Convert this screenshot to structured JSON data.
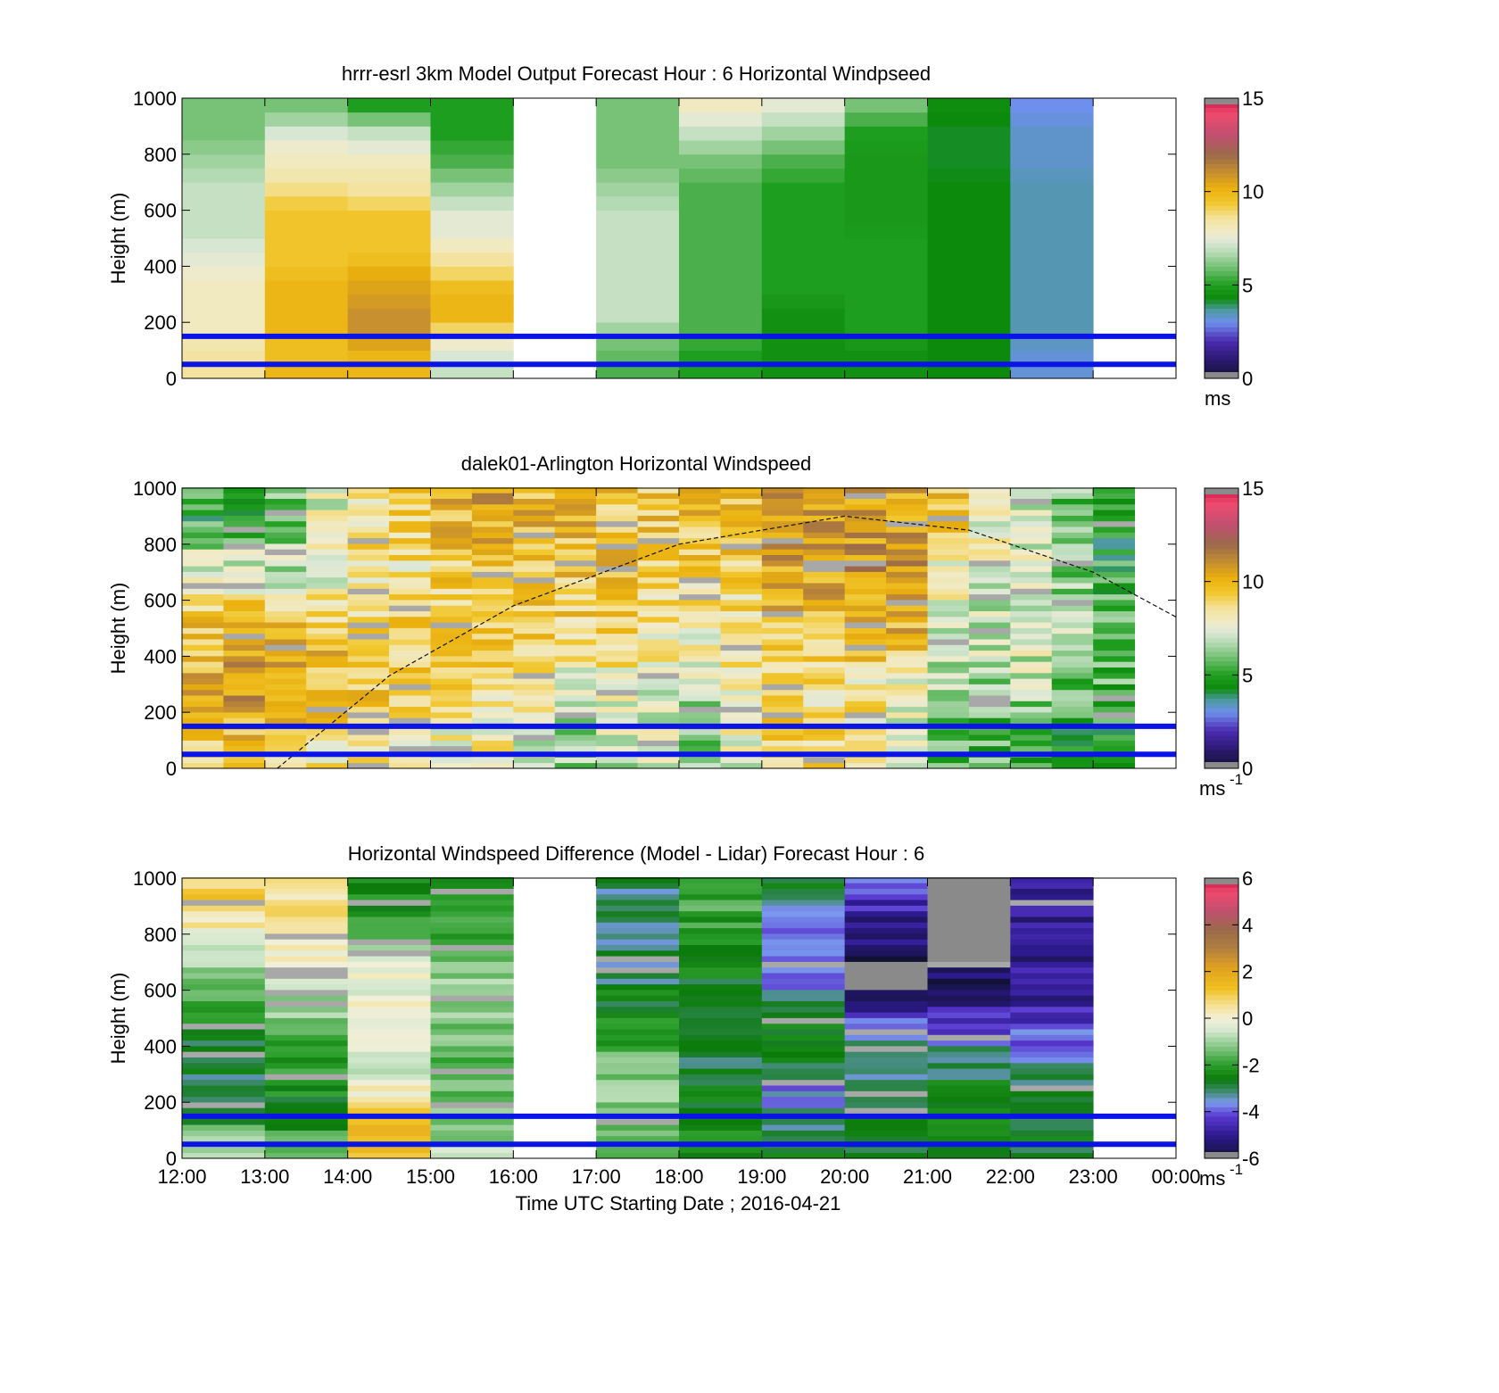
{
  "chart_data": [
    {
      "type": "heatmap",
      "title": "hrrr-esrl 3km Model Output   Forecast Hour : 6 Horizontal Windpseed",
      "ylabel": "Height (m)",
      "xlabel": "",
      "xlim": [
        12,
        24
      ],
      "ylim": [
        0,
        1000
      ],
      "yticks": [
        "0",
        "200",
        "400",
        "600",
        "800",
        "1000"
      ],
      "reference_lines_m": [
        150,
        50
      ],
      "colorbar": {
        "min": 0,
        "max": 15,
        "ticks": [
          "0",
          "5",
          "10",
          "15"
        ],
        "unit": "ms",
        "unit_sup": ""
      },
      "heights": [
        50,
        100,
        150,
        200,
        250,
        300,
        350,
        400,
        450,
        500,
        550,
        600,
        650,
        700,
        750,
        800,
        850,
        900,
        950,
        1000
      ],
      "columns": [
        {
          "hour": 12,
          "values": [
            8.5,
            8.5,
            8,
            8,
            8,
            8,
            8,
            7.5,
            7.5,
            7,
            7,
            7,
            7,
            7,
            6.5,
            6.5,
            6,
            6,
            6,
            6
          ]
        },
        {
          "hour": 13,
          "values": [
            10,
            9.5,
            10,
            10,
            10,
            10,
            10,
            9.5,
            9.5,
            9.5,
            9.5,
            9.5,
            9,
            8.5,
            8,
            8,
            7.5,
            7,
            6,
            6
          ]
        },
        {
          "hour": 14,
          "values": [
            10,
            10,
            11,
            11,
            11,
            10.5,
            10.5,
            10,
            9.5,
            9.5,
            9.5,
            9.5,
            8.5,
            8.5,
            8,
            8,
            7,
            7,
            5,
            5
          ]
        },
        {
          "hour": 15,
          "values": [
            7,
            7.5,
            8,
            10,
            10,
            10,
            9.5,
            8.5,
            8.5,
            7.5,
            7.5,
            7.5,
            6.5,
            6.5,
            5.5,
            5.5,
            5,
            5,
            5,
            5
          ]
        },
        {
          "hour": 16,
          "values": null
        },
        {
          "hour": 17,
          "values": [
            5.5,
            6,
            6,
            7,
            7,
            7,
            7,
            7,
            7,
            7,
            7,
            7,
            6.5,
            6.5,
            6,
            6,
            6,
            6,
            6,
            6
          ]
        },
        {
          "hour": 18,
          "values": [
            5,
            5,
            5.5,
            5.5,
            5.5,
            5.5,
            5.5,
            5.5,
            5.5,
            5.5,
            5.5,
            5.5,
            5.5,
            5.5,
            6,
            6,
            7,
            7,
            8,
            8
          ]
        },
        {
          "hour": 19,
          "values": [
            4.5,
            4.5,
            4.5,
            4.5,
            4.5,
            5,
            5,
            5,
            5,
            5,
            5,
            5,
            5,
            5,
            5.5,
            5.5,
            6.5,
            6.5,
            7.5,
            7.5
          ]
        },
        {
          "hour": 20,
          "values": [
            4.5,
            4.5,
            5,
            5,
            5,
            5,
            5,
            5,
            5,
            5,
            4.8,
            4.8,
            4.8,
            4.8,
            4.8,
            4.8,
            5,
            5,
            6,
            6
          ]
        },
        {
          "hour": 21,
          "values": [
            4.3,
            4.3,
            4.3,
            4.3,
            4.3,
            4.3,
            4.3,
            4.3,
            4.3,
            4.3,
            4.3,
            4.3,
            4.3,
            4.3,
            4.2,
            4.2,
            4.2,
            4.2,
            4.4,
            4.4
          ]
        },
        {
          "hour": 22,
          "values": [
            3.2,
            3.2,
            3.5,
            3.5,
            3.5,
            3.5,
            3.5,
            3.5,
            3.5,
            3.5,
            3.5,
            3.5,
            3.5,
            3.5,
            3.3,
            3.3,
            3.3,
            3.3,
            3,
            3
          ]
        },
        {
          "hour": 23,
          "values": null
        }
      ]
    },
    {
      "type": "heatmap",
      "title": "dalek01-Arlington  Horizontal Windspeed",
      "ylabel": "Height (m)",
      "xlabel": "",
      "xlim": [
        12,
        24
      ],
      "ylim": [
        0,
        1000
      ],
      "yticks": [
        "0",
        "200",
        "400",
        "600",
        "800",
        "1000"
      ],
      "reference_lines_m": [
        150,
        50
      ],
      "colorbar": {
        "min": 0,
        "max": 15,
        "ticks": [
          "0",
          "5",
          "10",
          "15"
        ],
        "unit": "ms",
        "unit_sup": "-1"
      },
      "heights": [
        100,
        300,
        500,
        700,
        900
      ],
      "columns": [
        {
          "hour": 12.25,
          "values": [
            9,
            10,
            9.5,
            7.5,
            5
          ]
        },
        {
          "hour": 12.75,
          "values": [
            9.5,
            11,
            10,
            7.5,
            5
          ]
        },
        {
          "hour": 13.25,
          "values": [
            9,
            10.5,
            9.5,
            7,
            6
          ]
        },
        {
          "hour": 13.75,
          "values": [
            8.5,
            10,
            9.5,
            7.5,
            7.5
          ]
        },
        {
          "hour": 14.25,
          "values": [
            8.5,
            9.5,
            9,
            8.5,
            8.5
          ]
        },
        {
          "hour": 14.75,
          "values": [
            8,
            9,
            9,
            8.5,
            9
          ]
        },
        {
          "hour": 15.25,
          "values": [
            8,
            9,
            9.5,
            9,
            10
          ]
        },
        {
          "hour": 15.75,
          "values": [
            8,
            9,
            9.5,
            9.5,
            10.5
          ]
        },
        {
          "hour": 16.25,
          "values": [
            7.5,
            8.5,
            9.5,
            9.5,
            10
          ]
        },
        {
          "hour": 16.75,
          "values": [
            6.5,
            7.5,
            9,
            9.5,
            10
          ]
        },
        {
          "hour": 17.25,
          "values": [
            7,
            8,
            9,
            9.5,
            9.5
          ]
        },
        {
          "hour": 17.75,
          "values": [
            7,
            7.5,
            8.5,
            9,
            9.5
          ]
        },
        {
          "hour": 18.25,
          "values": [
            6.5,
            7,
            8,
            9,
            9.5
          ]
        },
        {
          "hour": 18.75,
          "values": [
            7.5,
            8,
            8.5,
            9,
            10
          ]
        },
        {
          "hour": 19.25,
          "values": [
            9,
            9,
            9.5,
            10.5,
            11
          ]
        },
        {
          "hour": 19.75,
          "values": [
            9,
            8.5,
            9.5,
            10.5,
            10.5
          ]
        },
        {
          "hour": 20.25,
          "values": [
            8.5,
            8.5,
            10,
            11,
            10.5
          ]
        },
        {
          "hour": 20.75,
          "values": [
            7.5,
            8,
            10,
            11,
            10.5
          ]
        },
        {
          "hour": 21.25,
          "values": [
            6,
            6.5,
            7.5,
            8,
            9.5
          ]
        },
        {
          "hour": 21.75,
          "values": [
            5.5,
            6.5,
            7,
            7.5,
            8
          ]
        },
        {
          "hour": 22.25,
          "values": [
            5.5,
            7,
            7.5,
            7.5,
            7.5
          ]
        },
        {
          "hour": 22.75,
          "values": [
            5,
            6,
            6.5,
            6,
            6
          ]
        },
        {
          "hour": 23.25,
          "values": [
            4.5,
            5.5,
            5.5,
            5,
            4.5
          ]
        }
      ],
      "annotation_curve": {
        "style": "dashed",
        "points": [
          [
            13.15,
            0
          ],
          [
            14.5,
            330
          ],
          [
            16,
            580
          ],
          [
            18,
            800
          ],
          [
            20,
            900
          ],
          [
            21.5,
            850
          ],
          [
            23,
            700
          ],
          [
            24,
            540
          ]
        ]
      }
    },
    {
      "type": "heatmap",
      "title": "Horizontal Windspeed Difference (Model - Lidar) Forecast Hour : 6",
      "ylabel": "Height (m)",
      "xlabel": "Time UTC  Starting Date ; 2016-04-21",
      "xlim": [
        12,
        24
      ],
      "ylim": [
        0,
        1000
      ],
      "xticks": [
        "12:00",
        "13:00",
        "14:00",
        "15:00",
        "16:00",
        "17:00",
        "18:00",
        "19:00",
        "20:00",
        "21:00",
        "22:00",
        "23:00",
        "00:00"
      ],
      "yticks": [
        "0",
        "200",
        "400",
        "600",
        "800",
        "1000"
      ],
      "reference_lines_m": [
        150,
        50
      ],
      "colorbar": {
        "min": -6,
        "max": 6,
        "ticks": [
          "-6",
          "-4",
          "-2",
          "0",
          "2",
          "4",
          "6"
        ],
        "unit": "ms",
        "unit_sup": "-1"
      },
      "heights": [
        50,
        150,
        250,
        350,
        450,
        550,
        650,
        750,
        850,
        950
      ],
      "columns": [
        {
          "hour": 12,
          "values": [
            -1,
            -2.5,
            -2.8,
            -2.8,
            -2.5,
            -2,
            -1.2,
            -0.3,
            0.3,
            1
          ]
        },
        {
          "hour": 13,
          "values": [
            -1.5,
            -2.5,
            -2.3,
            -2,
            -1.5,
            -1,
            -0.5,
            0.2,
            0.6,
            0.3
          ]
        },
        {
          "hour": 14,
          "values": [
            1.5,
            1.5,
            0,
            -0.5,
            -0.5,
            -0.2,
            0,
            -1,
            -2,
            -2.5
          ]
        },
        {
          "hour": 15,
          "values": [
            -0.8,
            -1.5,
            -1.5,
            -1.5,
            -1.2,
            -1,
            -1,
            -1.5,
            -2,
            -2.5
          ]
        },
        {
          "hour": 16,
          "values": null
        },
        {
          "hour": 17,
          "values": [
            -1.5,
            -1.2,
            -1,
            -1.5,
            -2,
            -2.5,
            -3,
            -3.2,
            -3.2,
            -3
          ]
        },
        {
          "hour": 18,
          "values": [
            -2.5,
            -2.5,
            -2.8,
            -3,
            -3,
            -2.8,
            -2.5,
            -2.2,
            -2,
            -1.8
          ]
        },
        {
          "hour": 19,
          "values": [
            -2.8,
            -3.5,
            -3.8,
            -2.5,
            -2.5,
            -3,
            -4,
            -4,
            -3.5,
            -2.8
          ]
        },
        {
          "hour": 20,
          "values": [
            -2.7,
            -2.7,
            -3,
            -3,
            -3.5,
            -5.2,
            null,
            -5.5,
            -5,
            -4.2
          ]
        },
        {
          "hour": 21,
          "values": [
            -2.5,
            -2.6,
            -2.6,
            -3,
            -4,
            -5,
            -5.5,
            null,
            null,
            null
          ]
        },
        {
          "hour": 22,
          "values": [
            -2.6,
            -2.7,
            -3,
            -3.5,
            -4,
            -4.8,
            -5,
            -5,
            -5,
            -5
          ]
        },
        {
          "hour": 23,
          "values": null
        }
      ]
    }
  ]
}
